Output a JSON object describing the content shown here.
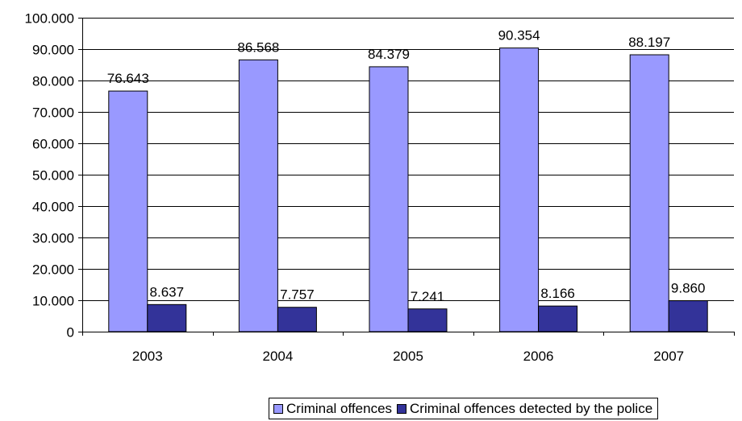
{
  "chart_data": {
    "type": "bar",
    "categories": [
      "2003",
      "2004",
      "2005",
      "2006",
      "2007"
    ],
    "series": [
      {
        "name": "Criminal offences",
        "values": [
          76643,
          86568,
          84379,
          90354,
          88197
        ],
        "labels": [
          "76.643",
          "86.568",
          "84.379",
          "90.354",
          "88.197"
        ],
        "color": "#9999ff"
      },
      {
        "name": "Criminal offences detected by the police",
        "values": [
          8637,
          7757,
          7241,
          8166,
          9860
        ],
        "labels": [
          "8.637",
          "7.757",
          "7.241",
          "8.166",
          "9.860"
        ],
        "color": "#333399"
      }
    ],
    "y_ticks": [
      {
        "value": 0,
        "label": "0"
      },
      {
        "value": 10000,
        "label": "10.000"
      },
      {
        "value": 20000,
        "label": "20.000"
      },
      {
        "value": 30000,
        "label": "30.000"
      },
      {
        "value": 40000,
        "label": "40.000"
      },
      {
        "value": 50000,
        "label": "50.000"
      },
      {
        "value": 60000,
        "label": "60.000"
      },
      {
        "value": 70000,
        "label": "70.000"
      },
      {
        "value": 80000,
        "label": "80.000"
      },
      {
        "value": 90000,
        "label": "90.000"
      },
      {
        "value": 100000,
        "label": "100.000"
      }
    ],
    "ylim": [
      0,
      100000
    ],
    "grid": true,
    "legend_position": "bottom"
  }
}
